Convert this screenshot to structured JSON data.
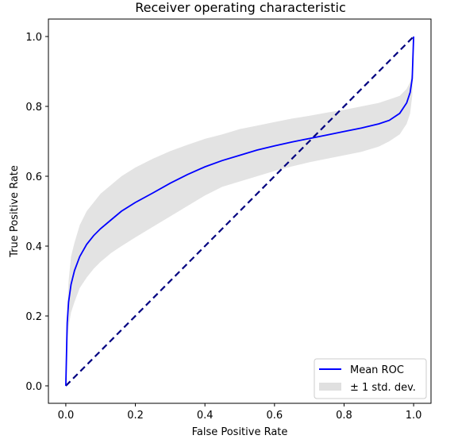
{
  "chart_data": {
    "type": "line",
    "title": "Receiver operating characteristic",
    "xlabel": "False Positive Rate",
    "ylabel": "True Positive Rate",
    "xlim": [
      -0.05,
      1.05
    ],
    "ylim": [
      -0.05,
      1.05
    ],
    "grid": false,
    "legend_position": "lower-right",
    "x_ticks": [
      0.0,
      0.2,
      0.4,
      0.6,
      0.8,
      1.0
    ],
    "y_ticks": [
      0.0,
      0.2,
      0.4,
      0.6,
      0.8,
      1.0
    ],
    "x_tick_labels": [
      "0.0",
      "0.2",
      "0.4",
      "0.6",
      "0.8",
      "1.0"
    ],
    "y_tick_labels": [
      "0.0",
      "0.2",
      "0.4",
      "0.6",
      "0.8",
      "1.0"
    ],
    "series": [
      {
        "name": "Mean ROC",
        "kind": "line",
        "color": "#0000ff",
        "points": [
          [
            0.0,
            0.0
          ],
          [
            0.004,
            0.18
          ],
          [
            0.008,
            0.24
          ],
          [
            0.015,
            0.29
          ],
          [
            0.025,
            0.33
          ],
          [
            0.04,
            0.37
          ],
          [
            0.06,
            0.405
          ],
          [
            0.08,
            0.43
          ],
          [
            0.1,
            0.45
          ],
          [
            0.13,
            0.475
          ],
          [
            0.16,
            0.5
          ],
          [
            0.2,
            0.525
          ],
          [
            0.25,
            0.552
          ],
          [
            0.3,
            0.58
          ],
          [
            0.35,
            0.605
          ],
          [
            0.4,
            0.627
          ],
          [
            0.45,
            0.645
          ],
          [
            0.5,
            0.66
          ],
          [
            0.55,
            0.675
          ],
          [
            0.6,
            0.687
          ],
          [
            0.65,
            0.698
          ],
          [
            0.7,
            0.708
          ],
          [
            0.75,
            0.718
          ],
          [
            0.8,
            0.728
          ],
          [
            0.85,
            0.738
          ],
          [
            0.9,
            0.75
          ],
          [
            0.93,
            0.76
          ],
          [
            0.96,
            0.78
          ],
          [
            0.98,
            0.81
          ],
          [
            0.99,
            0.84
          ],
          [
            0.996,
            0.88
          ],
          [
            1.0,
            1.0
          ]
        ]
      },
      {
        "name": "± 1 std. dev.",
        "kind": "band",
        "color": "#e0e0e0",
        "x": [
          0.0,
          0.004,
          0.008,
          0.015,
          0.025,
          0.04,
          0.06,
          0.08,
          0.1,
          0.13,
          0.16,
          0.2,
          0.25,
          0.3,
          0.35,
          0.4,
          0.45,
          0.5,
          0.55,
          0.6,
          0.65,
          0.7,
          0.75,
          0.8,
          0.85,
          0.9,
          0.93,
          0.96,
          0.98,
          0.99,
          0.996,
          1.0
        ],
        "upper": [
          0.0,
          0.22,
          0.3,
          0.37,
          0.41,
          0.46,
          0.5,
          0.525,
          0.55,
          0.575,
          0.6,
          0.625,
          0.65,
          0.672,
          0.69,
          0.707,
          0.72,
          0.735,
          0.745,
          0.755,
          0.765,
          0.773,
          0.782,
          0.79,
          0.8,
          0.81,
          0.82,
          0.83,
          0.85,
          0.87,
          0.9,
          1.0
        ],
        "lower": [
          0.0,
          0.12,
          0.17,
          0.21,
          0.24,
          0.28,
          0.31,
          0.335,
          0.355,
          0.38,
          0.4,
          0.425,
          0.455,
          0.485,
          0.515,
          0.545,
          0.57,
          0.585,
          0.6,
          0.615,
          0.628,
          0.64,
          0.65,
          0.66,
          0.67,
          0.685,
          0.7,
          0.72,
          0.75,
          0.78,
          0.83,
          1.0
        ]
      },
      {
        "name": "",
        "kind": "dashed-line",
        "color": "#000080",
        "points": [
          [
            0.0,
            0.0
          ],
          [
            1.0,
            1.0
          ]
        ]
      }
    ]
  }
}
